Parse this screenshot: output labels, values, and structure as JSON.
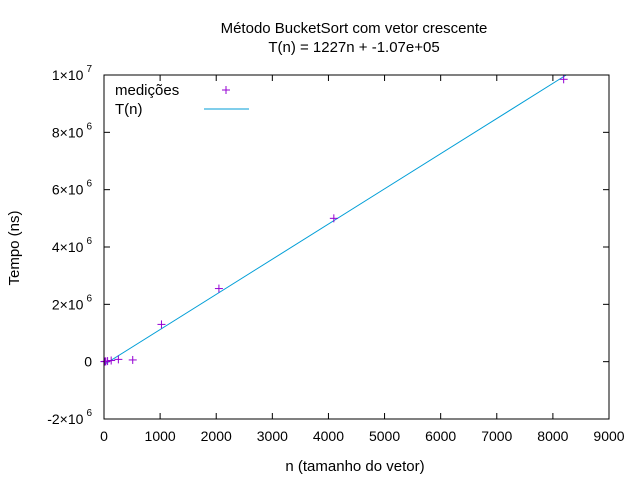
{
  "chart_data": {
    "type": "scatter",
    "title": "Método BucketSort com vetor crescente",
    "subtitle": "T(n) = 1227n + -1.07e+05",
    "xlabel": "n (tamanho do vetor)",
    "ylabel": "Tempo (ns)",
    "xlim": [
      0,
      9000
    ],
    "ylim": [
      -2000000,
      10000000
    ],
    "x_ticks": [
      {
        "value": 0,
        "label": "0"
      },
      {
        "value": 1000,
        "label": "1000"
      },
      {
        "value": 2000,
        "label": "2000"
      },
      {
        "value": 3000,
        "label": "3000"
      },
      {
        "value": 4000,
        "label": "4000"
      },
      {
        "value": 5000,
        "label": "5000"
      },
      {
        "value": 6000,
        "label": "6000"
      },
      {
        "value": 7000,
        "label": "7000"
      },
      {
        "value": 8000,
        "label": "8000"
      },
      {
        "value": 9000,
        "label": "9000"
      }
    ],
    "y_ticks": [
      {
        "value": -2000000,
        "mant": "-2×10",
        "exp": "6"
      },
      {
        "value": 0,
        "mant": "0",
        "exp": ""
      },
      {
        "value": 2000000,
        "mant": "2×10",
        "exp": "6"
      },
      {
        "value": 4000000,
        "mant": "4×10",
        "exp": "6"
      },
      {
        "value": 6000000,
        "mant": "6×10",
        "exp": "6"
      },
      {
        "value": 8000000,
        "mant": "8×10",
        "exp": "6"
      },
      {
        "value": 10000000,
        "mant": "1×10",
        "exp": "7"
      }
    ],
    "legend_position": "top-left",
    "grid": false,
    "series": [
      {
        "name": "medições",
        "kind": "points",
        "color": "#9400d3",
        "x": [
          8,
          16,
          32,
          64,
          128,
          256,
          512,
          1024,
          2048,
          4096,
          8192
        ],
        "y": [
          2000,
          5000,
          10000,
          20000,
          40000,
          80000,
          60000,
          1300000,
          2550000,
          5000000,
          9850000
        ]
      },
      {
        "name": "T(n)",
        "kind": "line",
        "color": "#009ed7",
        "slope": 1227,
        "intercept": -107000
      }
    ]
  }
}
